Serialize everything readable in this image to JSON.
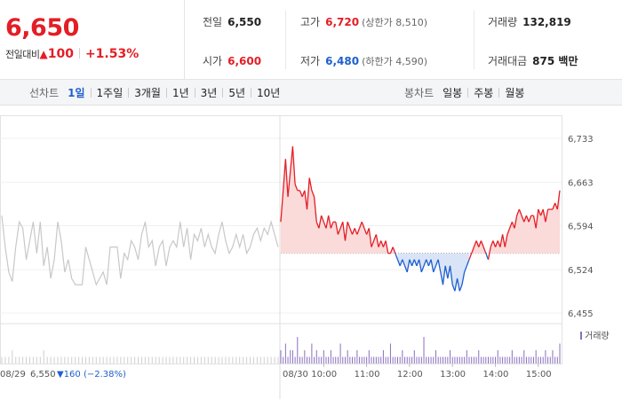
{
  "summary": {
    "price": "6,650",
    "change_label": "전일대비",
    "change_arrow": "▲",
    "change_amount": "100",
    "change_pct": "+1.53%",
    "prev_close": {
      "label": "전일",
      "value": "6,550"
    },
    "open": {
      "label": "시가",
      "value": "6,600"
    },
    "high": {
      "label": "고가",
      "value": "6,720",
      "limit": "(상한가 8,510)"
    },
    "low": {
      "label": "저가",
      "value": "6,480",
      "limit": "(하한가 4,590)"
    },
    "volume": {
      "label": "거래량",
      "value": "132,819"
    },
    "amount": {
      "label": "거래대금",
      "value": "875 백만"
    }
  },
  "tabs": {
    "line_label": "선차트",
    "line_tabs": [
      "1일",
      "1주일",
      "3개월",
      "1년",
      "3년",
      "5년",
      "10년"
    ],
    "active_line_tab": "1일",
    "candle_label": "봉차트",
    "candle_tabs": [
      "일봉",
      "주봉",
      "월봉"
    ]
  },
  "colors": {
    "up": "#e31e25",
    "down": "#1e5fcf",
    "prev_day_line": "#c8c8c8",
    "volume": "#8a6fc0",
    "up_fill": "#fbdada",
    "down_fill": "#d9e4f6"
  },
  "chart_data": {
    "type": "line",
    "reference_price": 6550,
    "ylim": [
      6455,
      6733
    ],
    "yticks": [
      "6,733",
      "6,663",
      "6,594",
      "6,524",
      "6,455"
    ],
    "ytick_values": [
      6733,
      6663,
      6594,
      6524,
      6455
    ],
    "xticks": [
      "10:00",
      "11:00",
      "12:00",
      "13:00",
      "14:00",
      "15:00"
    ],
    "prev_day_label": "08/29",
    "prev_day_close": "6,550",
    "prev_day_change": "▼160 (−2.38%)",
    "today_label": "08/30",
    "volume_legend": "거래량",
    "prev_day_series": {
      "name": "08/29",
      "values": [
        6610,
        6560,
        6520,
        6505,
        6560,
        6600,
        6590,
        6540,
        6570,
        6600,
        6550,
        6600,
        6530,
        6560,
        6510,
        6540,
        6600,
        6570,
        6520,
        6540,
        6510,
        6500,
        6500,
        6500,
        6560,
        6540,
        6520,
        6500,
        6510,
        6520,
        6500,
        6560,
        6560,
        6560,
        6510,
        6550,
        6540,
        6570,
        6560,
        6540,
        6580,
        6600,
        6560,
        6570,
        6530,
        6560,
        6570,
        6530,
        6560,
        6570,
        6560,
        6600,
        6560,
        6590,
        6540,
        6580,
        6570,
        6590,
        6560,
        6580,
        6560,
        6550,
        6580,
        6600,
        6570,
        6550,
        6560,
        6580,
        6560,
        6580,
        6550,
        6560,
        6580,
        6590,
        6570,
        6590,
        6580,
        6600,
        6580,
        6560
      ]
    },
    "today_series": {
      "name": "08/30",
      "values": [
        6600,
        6650,
        6700,
        6640,
        6680,
        6720,
        6660,
        6650,
        6650,
        6640,
        6650,
        6620,
        6670,
        6650,
        6640,
        6600,
        6590,
        6610,
        6600,
        6590,
        6610,
        6590,
        6600,
        6600,
        6580,
        6590,
        6600,
        6570,
        6600,
        6590,
        6580,
        6590,
        6580,
        6590,
        6600,
        6590,
        6580,
        6590,
        6560,
        6570,
        6580,
        6560,
        6570,
        6560,
        6570,
        6550,
        6550,
        6560,
        6550,
        6540,
        6530,
        6540,
        6530,
        6520,
        6540,
        6530,
        6540,
        6530,
        6540,
        6520,
        6530,
        6540,
        6530,
        6540,
        6520,
        6530,
        6540,
        6520,
        6500,
        6530,
        6510,
        6530,
        6500,
        6490,
        6510,
        6490,
        6500,
        6520,
        6530,
        6540,
        6550,
        6560,
        6570,
        6560,
        6570,
        6560,
        6550,
        6540,
        6560,
        6570,
        6560,
        6570,
        6560,
        6580,
        6560,
        6580,
        6590,
        6600,
        6590,
        6610,
        6620,
        6610,
        6600,
        6610,
        6600,
        6610,
        6610,
        6590,
        6620,
        6610,
        6620,
        6600,
        6620,
        6620,
        6620,
        6630,
        6620,
        6650
      ]
    },
    "volume_today": [
      2,
      1,
      3,
      1,
      2,
      2,
      1,
      4,
      1,
      1,
      2,
      1,
      1,
      3,
      1,
      2,
      1,
      1,
      2,
      1,
      1,
      2,
      1,
      1,
      1,
      3,
      1,
      1,
      2,
      1,
      1,
      1,
      2,
      1,
      1,
      1,
      1,
      2,
      1,
      1,
      1,
      1,
      1,
      2,
      1,
      1,
      3,
      1,
      1,
      1,
      1,
      2,
      1,
      1,
      1,
      1,
      2,
      1,
      1,
      1,
      4,
      1,
      1,
      1,
      1,
      2,
      1,
      1,
      1,
      1,
      1,
      2,
      1,
      1,
      1,
      1,
      1,
      1,
      2,
      1,
      1,
      1,
      1,
      2,
      1,
      1,
      1,
      1,
      1,
      1,
      1,
      2,
      1,
      1,
      1,
      1,
      1,
      2,
      1,
      1,
      1,
      1,
      2,
      1,
      1,
      1,
      1,
      2,
      1,
      1,
      1,
      2,
      1,
      1,
      2,
      1,
      1,
      3
    ],
    "volume_prev_day": [
      1,
      1,
      1,
      2,
      1,
      1,
      1,
      1,
      1,
      1,
      1,
      1,
      2,
      1,
      1,
      1,
      1,
      1,
      1,
      1,
      1,
      1,
      1,
      1,
      1,
      1,
      1,
      1,
      1,
      1,
      1,
      1,
      1,
      1,
      1,
      1,
      1,
      1,
      1,
      1,
      1,
      1,
      1,
      1,
      1,
      1,
      1,
      1,
      1,
      1,
      1,
      1,
      1,
      1,
      1,
      1,
      1,
      1,
      1,
      1,
      1,
      1,
      1,
      1,
      1,
      1,
      1,
      1,
      1,
      1,
      1,
      1,
      1,
      1,
      1,
      1,
      1,
      1,
      1,
      1
    ]
  }
}
